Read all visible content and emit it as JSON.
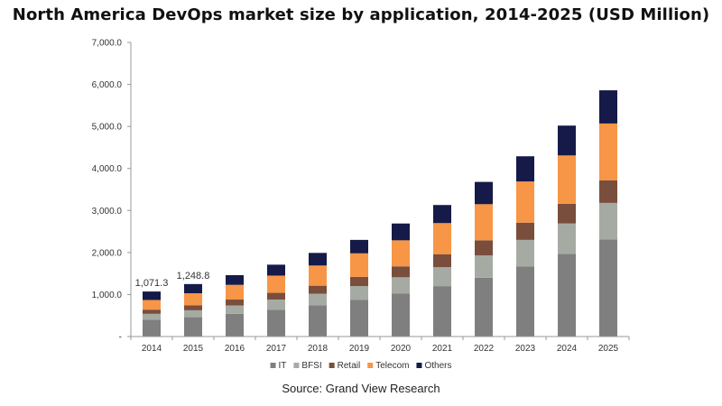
{
  "chart_data": {
    "type": "bar",
    "stacked": true,
    "title": "North America DevOps market size by application, 2014-2025 (USD Million)",
    "source": "Source: Grand View Research",
    "categories": [
      "2014",
      "2015",
      "2016",
      "2017",
      "2018",
      "2019",
      "2020",
      "2021",
      "2022",
      "2023",
      "2024",
      "2025"
    ],
    "series": [
      {
        "name": "IT",
        "color": "#7f7f7f",
        "values": [
          400,
          460,
          540,
          640,
          740,
          870,
          1020,
          1200,
          1400,
          1670,
          1970,
          2310
        ]
      },
      {
        "name": "BFSI",
        "color": "#a5aba2",
        "values": [
          140,
          165,
          200,
          240,
          280,
          330,
          390,
          450,
          530,
          630,
          720,
          870
        ]
      },
      {
        "name": "Retail",
        "color": "#7a4e3c",
        "values": [
          100,
          120,
          140,
          160,
          190,
          220,
          260,
          310,
          360,
          410,
          470,
          540
        ]
      },
      {
        "name": "Telecom",
        "color": "#f79646",
        "values": [
          230,
          285,
          350,
          410,
          480,
          560,
          620,
          740,
          860,
          980,
          1150,
          1350
        ]
      },
      {
        "name": "Others",
        "color": "#161a48",
        "values": [
          201.3,
          218.8,
          230,
          260,
          300,
          320,
          400,
          430,
          530,
          600,
          710,
          790
        ]
      }
    ],
    "data_labels": [
      {
        "category": "2014",
        "text": "1,071.3"
      },
      {
        "category": "2015",
        "text": "1,248.8"
      }
    ],
    "ylim": [
      0,
      7000
    ],
    "yticks": [
      {
        "value": 0,
        "label": "-"
      },
      {
        "value": 1000,
        "label": "1,000.0"
      },
      {
        "value": 2000,
        "label": "2,000.0"
      },
      {
        "value": 3000,
        "label": "3,000.0"
      },
      {
        "value": 4000,
        "label": "4,000.0"
      },
      {
        "value": 5000,
        "label": "5,000.0"
      },
      {
        "value": 6000,
        "label": "6,000.0"
      },
      {
        "value": 7000,
        "label": "7,000.0"
      }
    ],
    "xlabel": "",
    "ylabel": "",
    "grid": false,
    "legend_position": "bottom"
  }
}
